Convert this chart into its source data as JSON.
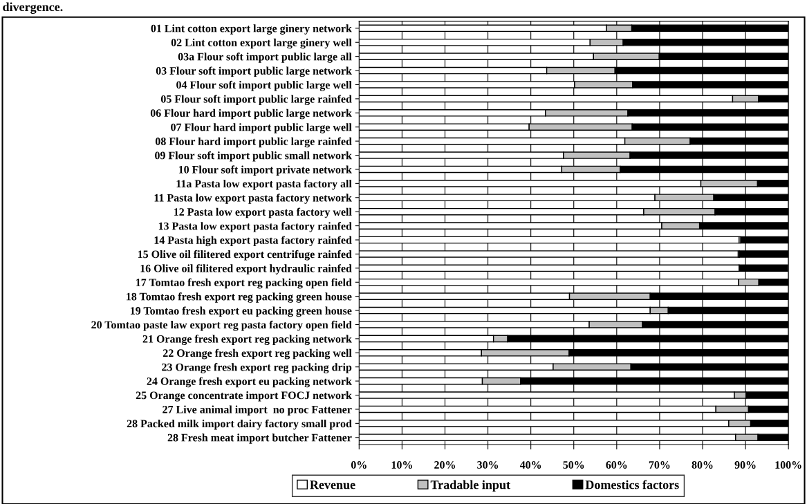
{
  "chart_data": {
    "type": "bar",
    "orientation": "horizontal",
    "stacked": true,
    "title": "divergence.",
    "categories": [
      "01 Lint cotton export large ginery network",
      "02 Lint cotton export large ginery well",
      "03a Flour soft import public large all",
      "03 Flour soft import public large network",
      "04 Flour soft import public large well",
      "05 Flour soft import public large rainfed",
      "06 Flour hard import public large network",
      "07 Flour hard import public large well",
      "08 Flour hard import public large rainfed",
      "09 Flour soft import public small network",
      "10 Flour soft import private network",
      "11a Pasta low export pasta factory all",
      "11 Pasta low export pasta factory network",
      "12 Pasta low export pasta factory well",
      "13 Pasta low export pasta factory rainfed",
      "14 Pasta high export pasta factory rainfed",
      "15 Olive oil filitered export centrifuge rainfed",
      "16 Olive oil filitered export hydraulic rainfed",
      "17 Tomtao fresh export reg packing open field",
      "18 Tomtao fresh export reg packing green house",
      "19 Tomtao fresh export eu packing green house",
      "20 Tomtao paste law export reg pasta factory open field",
      "21 Orange fresh export reg packing network",
      "22 Orange fresh export reg packing well",
      "23 Orange fresh export reg packing drip",
      "24 Orange fresh export eu packing network",
      "25 Orange concentrate import FOCJ network",
      "27 Live animal import  no proc Fattener",
      "28 Packed milk import dairy factory small prod",
      "28 Fresh meat import butcher Fattener"
    ],
    "series": [
      {
        "name": "Revenue",
        "color": "#ffffff",
        "values": [
          57.6,
          53.8,
          54.6,
          43.7,
          50.2,
          87.0,
          43.4,
          39.6,
          61.9,
          47.6,
          47.2,
          79.6,
          68.9,
          66.3,
          70.5,
          88.5,
          88.3,
          88.5,
          88.4,
          49.0,
          67.8,
          53.6,
          31.3,
          28.5,
          45.2,
          28.7,
          87.4,
          83.1,
          86.1,
          87.7
        ]
      },
      {
        "name": "Tradable input",
        "color": "#c0c0c0",
        "values": [
          5.9,
          7.7,
          15.3,
          15.9,
          13.5,
          6.0,
          19.2,
          24.0,
          15.2,
          15.5,
          13.6,
          13.2,
          13.7,
          16.6,
          8.8,
          0.4,
          0.3,
          null,
          4.7,
          18.8,
          4.2,
          12.4,
          3.3,
          20.4,
          18.1,
          8.9,
          2.7,
          7.6,
          5.1,
          5.2
        ]
      },
      {
        "name": "Domestics factors",
        "color": "#000000",
        "values": [
          36.5,
          38.5,
          30.1,
          40.4,
          36.3,
          7.0,
          37.4,
          36.4,
          22.9,
          36.9,
          39.2,
          7.2,
          17.4,
          17.1,
          20.7,
          11.1,
          11.4,
          11.3,
          6.9,
          32.2,
          28.0,
          34.0,
          65.4,
          51.1,
          36.7,
          62.4,
          9.9,
          9.3,
          8.8,
          7.1
        ]
      }
    ],
    "xlim": [
      0,
      100
    ],
    "xticks": [
      {
        "value": 0,
        "label": "0%"
      },
      {
        "value": 10,
        "label": "10%"
      },
      {
        "value": 20,
        "label": "20%"
      },
      {
        "value": 30,
        "label": "30%"
      },
      {
        "value": 40,
        "label": "40%"
      },
      {
        "value": 50,
        "label": "50%"
      },
      {
        "value": 60,
        "label": "60%"
      },
      {
        "value": 70,
        "label": "70%"
      },
      {
        "value": 80,
        "label": "80%"
      },
      {
        "value": 90,
        "label": "90%"
      },
      {
        "value": 100,
        "label": "100%"
      }
    ],
    "grid": "x",
    "legend": "bottom"
  }
}
